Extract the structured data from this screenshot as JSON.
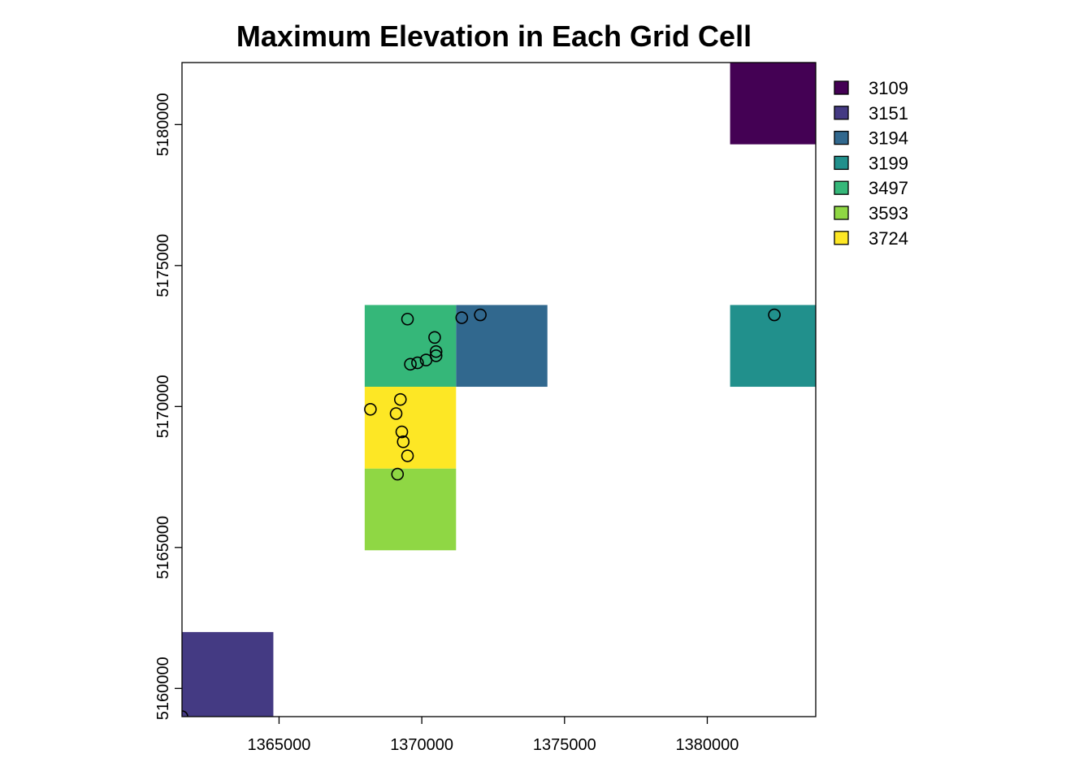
{
  "chart_data": {
    "type": "heatmap",
    "title": "Maximum Elevation in Each Grid Cell",
    "xlabel": "",
    "ylabel": "",
    "xlim": [
      1361600,
      1383800
    ],
    "ylim": [
      5159000,
      5182200
    ],
    "x_ticks": [
      1365000,
      1370000,
      1375000,
      1380000
    ],
    "y_ticks": [
      5160000,
      5165000,
      5170000,
      5175000,
      5180000
    ],
    "x_tick_labels": [
      "1365000",
      "1370000",
      "1375000",
      "1380000"
    ],
    "y_tick_labels": [
      "5160000",
      "5165000",
      "5170000",
      "5175000",
      "5180000"
    ],
    "grid": false,
    "legend_position": "right",
    "legend": [
      {
        "label": "3109",
        "color": "#440154"
      },
      {
        "label": "3151",
        "color": "#443A83"
      },
      {
        "label": "3194",
        "color": "#31688E"
      },
      {
        "label": "3199",
        "color": "#21908C"
      },
      {
        "label": "3497",
        "color": "#35B779"
      },
      {
        "label": "3593",
        "color": "#8FD744"
      },
      {
        "label": "3724",
        "color": "#FDE725"
      }
    ],
    "cells": [
      {
        "x0": 1380800,
        "x1": 1383800,
        "y0": 5179300,
        "y1": 5182200,
        "value": 3109
      },
      {
        "x0": 1361600,
        "x1": 1364800,
        "y0": 5159000,
        "y1": 5162000,
        "value": 3151
      },
      {
        "x0": 1371200,
        "x1": 1374400,
        "y0": 5170700,
        "y1": 5173600,
        "value": 3194
      },
      {
        "x0": 1380800,
        "x1": 1383800,
        "y0": 5170700,
        "y1": 5173600,
        "value": 3199
      },
      {
        "x0": 1368000,
        "x1": 1371200,
        "y0": 5170700,
        "y1": 5173600,
        "value": 3497
      },
      {
        "x0": 1368000,
        "x1": 1371200,
        "y0": 5164900,
        "y1": 5167800,
        "value": 3593
      },
      {
        "x0": 1368000,
        "x1": 1371200,
        "y0": 5167800,
        "y1": 5170700,
        "value": 3724
      }
    ],
    "points": [
      {
        "x": 1369500,
        "y": 5173100
      },
      {
        "x": 1370450,
        "y": 5172450
      },
      {
        "x": 1370500,
        "y": 5171950
      },
      {
        "x": 1370500,
        "y": 5171800
      },
      {
        "x": 1370150,
        "y": 5171650
      },
      {
        "x": 1369850,
        "y": 5171550
      },
      {
        "x": 1369600,
        "y": 5171500
      },
      {
        "x": 1371400,
        "y": 5173150
      },
      {
        "x": 1372050,
        "y": 5173250
      },
      {
        "x": 1382350,
        "y": 5173250
      },
      {
        "x": 1369250,
        "y": 5170250
      },
      {
        "x": 1368200,
        "y": 5169900
      },
      {
        "x": 1369100,
        "y": 5169750
      },
      {
        "x": 1369300,
        "y": 5169100
      },
      {
        "x": 1369350,
        "y": 5168750
      },
      {
        "x": 1369500,
        "y": 5168250
      },
      {
        "x": 1369150,
        "y": 5167600
      },
      {
        "x": 1361600,
        "y": 5159000
      }
    ]
  }
}
